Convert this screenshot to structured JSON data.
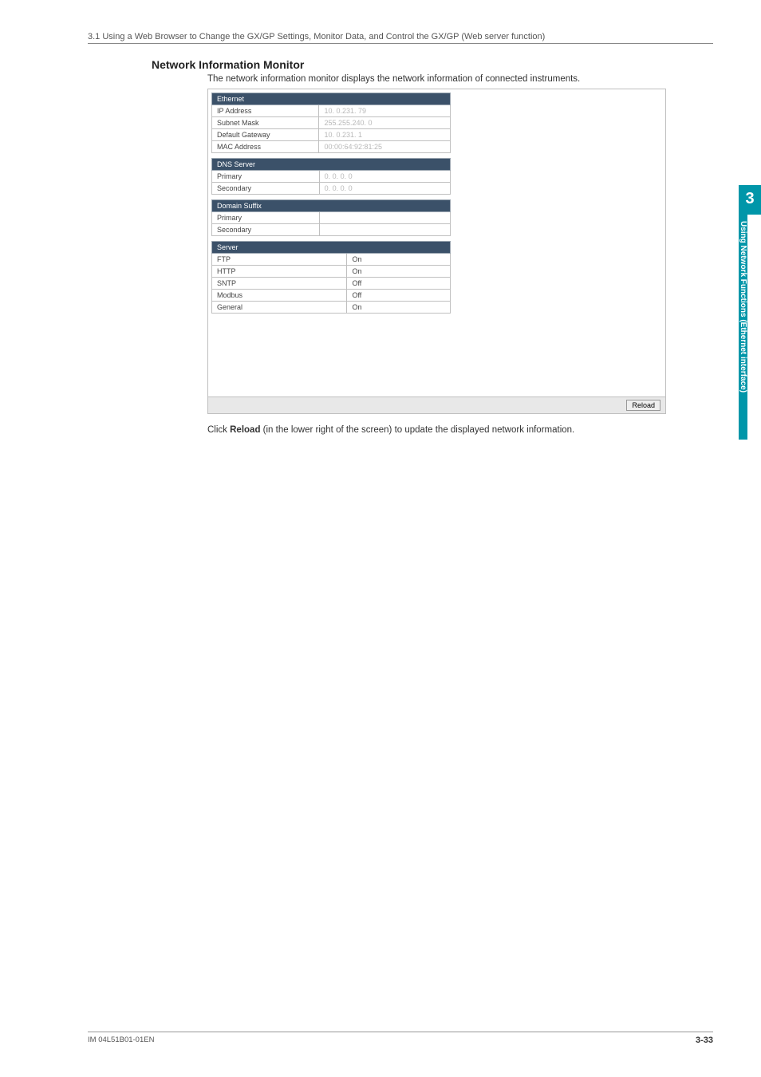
{
  "breadcrumb": "3.1  Using a Web Browser to Change the GX/GP Settings, Monitor Data, and Control the GX/GP (Web server function)",
  "section": {
    "title": "Network Information Monitor",
    "desc": "The network information monitor displays the network information of connected instruments."
  },
  "ethernet": {
    "header": "Ethernet",
    "rows": [
      {
        "label": "IP Address",
        "value": "10.  0.231. 79"
      },
      {
        "label": "Subnet Mask",
        "value": "255.255.240.  0"
      },
      {
        "label": "Default Gateway",
        "value": "10.  0.231.  1"
      },
      {
        "label": "MAC Address",
        "value": "00:00:64:92:81:25"
      }
    ]
  },
  "dns": {
    "header": "DNS Server",
    "rows": [
      {
        "label": "Primary",
        "value": "0.  0.  0.  0"
      },
      {
        "label": "Secondary",
        "value": "0.  0.  0.  0"
      }
    ]
  },
  "domain": {
    "header": "Domain Suffix",
    "rows": [
      {
        "label": "Primary",
        "value": ""
      },
      {
        "label": "Secondary",
        "value": ""
      }
    ]
  },
  "server": {
    "header": "Server",
    "rows": [
      {
        "label": "FTP",
        "value": "On"
      },
      {
        "label": "HTTP",
        "value": "On"
      },
      {
        "label": "SNTP",
        "value": "Off"
      },
      {
        "label": "Modbus",
        "value": "Off"
      },
      {
        "label": "General",
        "value": "On"
      }
    ]
  },
  "reload_label": "Reload",
  "after_text_1": "Click ",
  "after_text_bold": "Reload",
  "after_text_2": " (in the lower right of the screen) to update the displayed network information.",
  "sidetab": {
    "num": "3",
    "text": "Using Network Functions (Ethernet interface)"
  },
  "footer": {
    "left": "IM 04L51B01-01EN",
    "right": "3-33"
  },
  "colors": {
    "header_bg": "#3b5169",
    "tab_bg": "#0096a9",
    "border": "#c0c0c0",
    "text": "#333333",
    "muted": "#b8b8b8"
  }
}
